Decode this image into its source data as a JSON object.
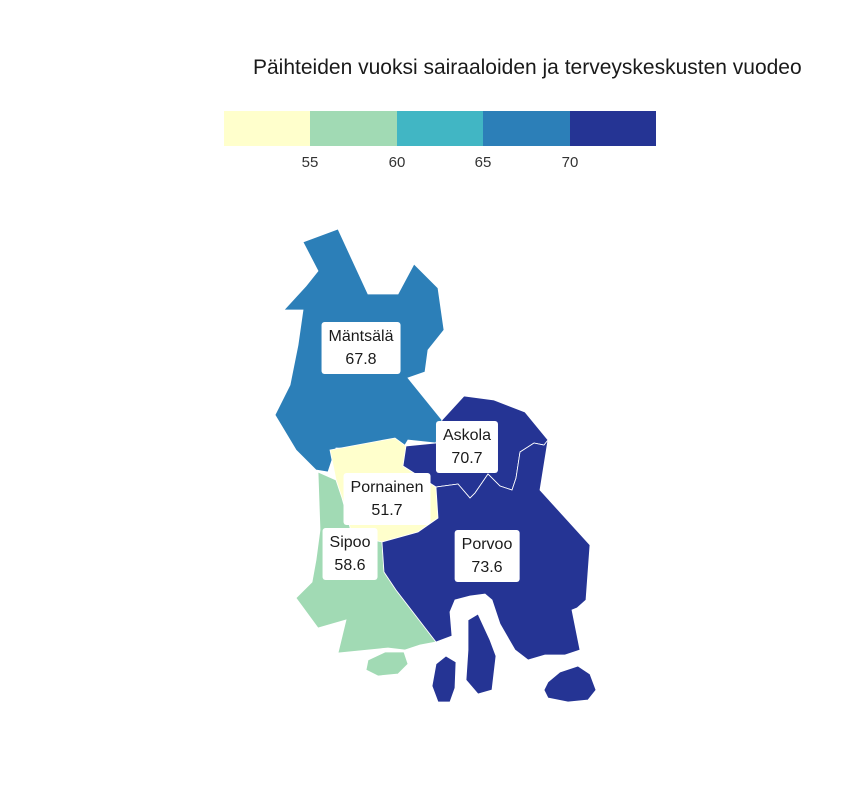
{
  "title": "Päihteiden vuoksi sairaaloiden ja terveyskeskusten vuodeo",
  "legend": {
    "colors": [
      "#ffffcc",
      "#a1dab4",
      "#41b6c4",
      "#2c7fb8",
      "#253494"
    ],
    "ticks": [
      "55",
      "60",
      "65",
      "70"
    ]
  },
  "regions": [
    {
      "name": "Mäntsälä",
      "value": "67.8",
      "color": "#2c7fb8"
    },
    {
      "name": "Askola",
      "value": "70.7",
      "color": "#253494"
    },
    {
      "name": "Pornainen",
      "value": "51.7",
      "color": "#ffffcc"
    },
    {
      "name": "Sipoo",
      "value": "58.6",
      "color": "#a1dab4"
    },
    {
      "name": "Porvoo",
      "value": "73.6",
      "color": "#253494"
    }
  ]
}
